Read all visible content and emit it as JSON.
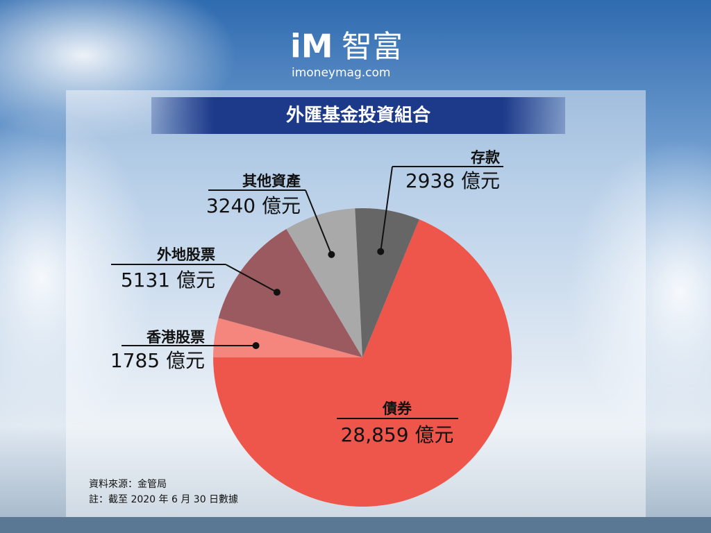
{
  "logo": {
    "mark": "iM",
    "name": "智富",
    "site": "imoneymag.com"
  },
  "chart_data": {
    "type": "pie",
    "title": "外匯基金投資組合",
    "categories": [
      "債券",
      "香港股票",
      "外地股票",
      "其他資產",
      "存款"
    ],
    "values": [
      28859,
      1785,
      5131,
      3240,
      2938
    ],
    "value_labels": [
      "28,859 億元",
      "1785 億元",
      "5131 億元",
      "3240 億元",
      "2938 億元"
    ],
    "colors": [
      "#ef564b",
      "#f4867d",
      "#9a5a5f",
      "#a9a9a9",
      "#666666"
    ]
  },
  "notes": [
    "資料來源：金管局",
    "註：截至 2020 年 6 月 30 日數據"
  ]
}
